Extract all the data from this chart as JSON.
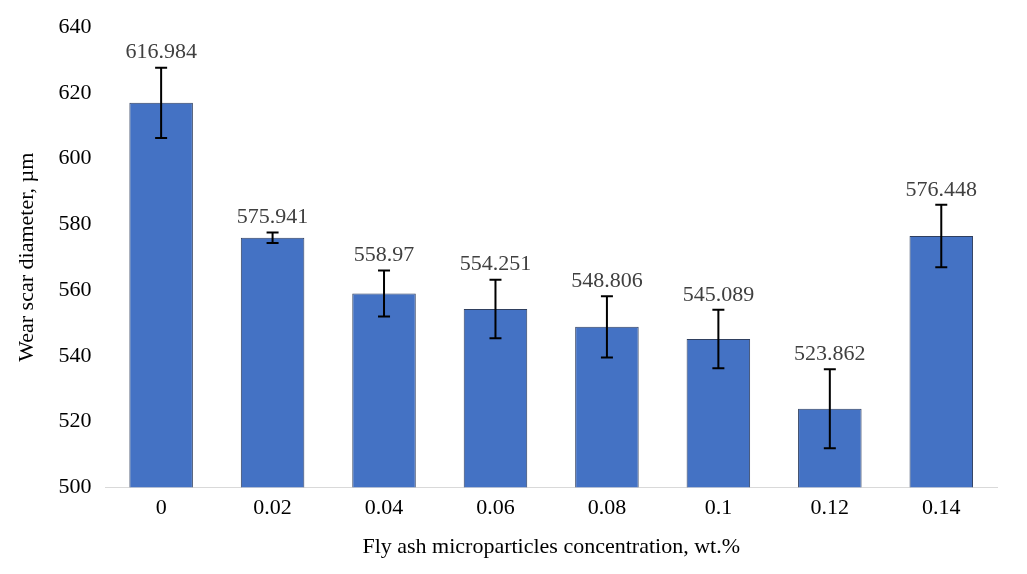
{
  "chart_data": {
    "type": "bar",
    "xlabel": "Fly ash microparticles concentration, wt.%",
    "ylabel": "Wear scar diameter, µm",
    "categories": [
      "0",
      "0.02",
      "0.04",
      "0.06",
      "0.08",
      "0.1",
      "0.12",
      "0.14"
    ],
    "values": [
      616.984,
      575.941,
      558.97,
      554.251,
      548.806,
      545.089,
      523.862,
      576.448
    ],
    "errors": [
      10.7,
      1.6,
      7,
      8.9,
      9.3,
      8.9,
      12,
      9.5
    ],
    "color": "#4472c4",
    "ylim": [
      500,
      640
    ],
    "yticks": [
      500,
      520,
      540,
      560,
      580,
      600,
      620,
      640
    ],
    "grid": false,
    "legend": false,
    "data_labels": true
  }
}
